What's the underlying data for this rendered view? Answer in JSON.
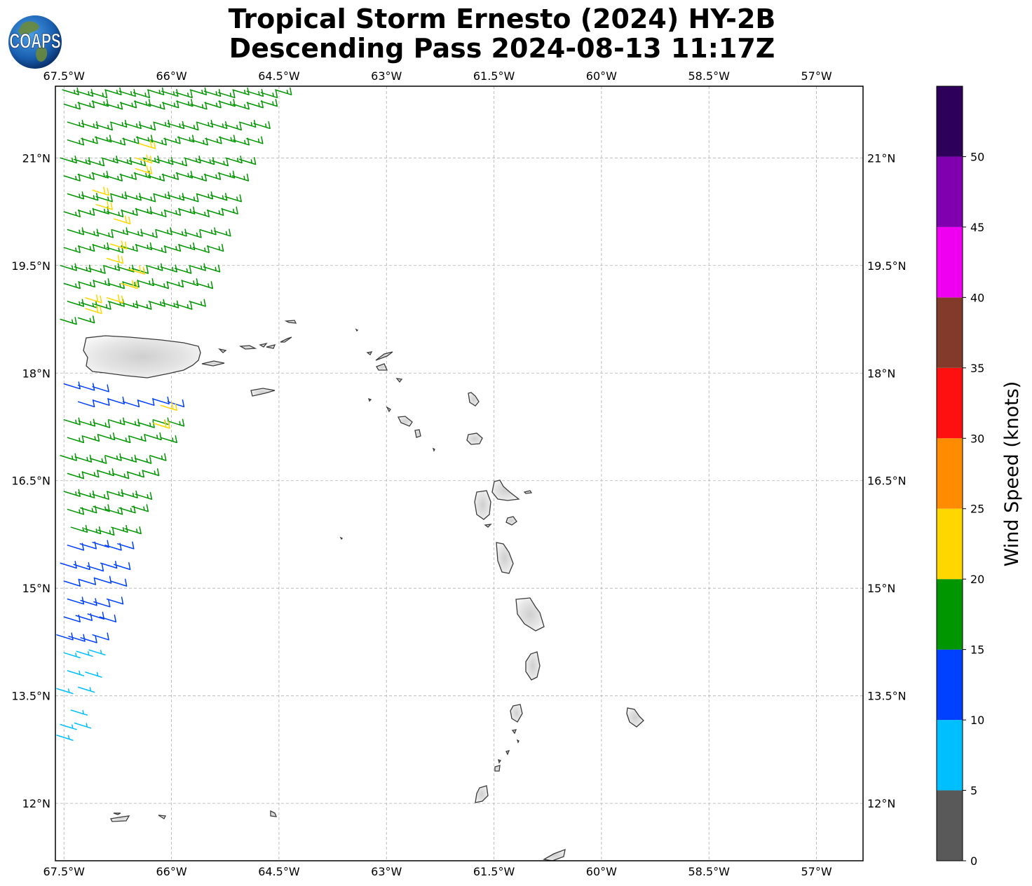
{
  "title": {
    "line1": "Tropical Storm Ernesto (2024) HY-2B",
    "line2": "Descending Pass 2024-08-13 11:17Z"
  },
  "logo": {
    "text": "COAPS",
    "icon": "globe-icon"
  },
  "map": {
    "lon_range": [
      -67.62,
      -56.35
    ],
    "lat_range": [
      11.2,
      22.0
    ],
    "lon_ticks": [
      -67.5,
      -66,
      -64.5,
      -63,
      -61.5,
      -60,
      -58.5,
      -57
    ],
    "lat_ticks": [
      12,
      13.5,
      15,
      16.5,
      18,
      19.5,
      21
    ],
    "lon_tick_labels": [
      "67.5°W",
      "66°W",
      "64.5°W",
      "63°W",
      "61.5°W",
      "60°W",
      "58.5°W",
      "57°W"
    ],
    "lat_tick_labels": [
      "12°N",
      "13.5°N",
      "15°N",
      "16.5°N",
      "18°N",
      "19.5°N",
      "21°N"
    ],
    "grid": true,
    "coastline_color": "#3a3a3a",
    "land_fill": "#e6e6e6"
  },
  "colorbar": {
    "label": "Wind Speed (knots)",
    "bounds": [
      0,
      5,
      10,
      15,
      20,
      25,
      30,
      35,
      40,
      45,
      50,
      55
    ],
    "tick_labels": [
      "0",
      "5",
      "10",
      "15",
      "20",
      "25",
      "30",
      "35",
      "40",
      "45",
      "50"
    ],
    "colors": [
      "#595959",
      "#00bfff",
      "#0040ff",
      "#009600",
      "#ffd700",
      "#ff8c00",
      "#ff1010",
      "#823b2a",
      "#f000f0",
      "#8000b0",
      "#2d005a"
    ]
  },
  "wind_swath": {
    "wind_from": "east-northeast",
    "rows": [
      {
        "lat": 21.95,
        "lon_start": -67.52,
        "lon_end": -64.55,
        "speed": 17
      },
      {
        "lat": 21.75,
        "lon_start": -67.5,
        "lon_end": -64.75,
        "speed": 17
      },
      {
        "lat": 21.5,
        "lon_start": -67.45,
        "lon_end": -64.85,
        "speed": 17
      },
      {
        "lat": 21.25,
        "lon_start": -67.45,
        "lon_end": -64.95,
        "speed": 18
      },
      {
        "lat": 21.0,
        "lon_start": -67.55,
        "lon_end": -65.05,
        "speed": 17
      },
      {
        "lat": 20.75,
        "lon_start": -67.5,
        "lon_end": -65.15,
        "speed": 18
      },
      {
        "lat": 20.5,
        "lon_start": -67.45,
        "lon_end": -65.25,
        "speed": 18
      },
      {
        "lat": 20.25,
        "lon_start": -67.5,
        "lon_end": -65.3,
        "speed": 17
      },
      {
        "lat": 20.0,
        "lon_start": -67.45,
        "lon_end": -65.4,
        "speed": 17
      },
      {
        "lat": 19.75,
        "lon_start": -67.5,
        "lon_end": -65.5,
        "speed": 18
      },
      {
        "lat": 19.5,
        "lon_start": -67.55,
        "lon_end": -65.55,
        "speed": 17
      },
      {
        "lat": 19.25,
        "lon_start": -67.5,
        "lon_end": -65.65,
        "speed": 18
      },
      {
        "lat": 19.0,
        "lon_start": -67.45,
        "lon_end": -65.75,
        "speed": 17
      },
      {
        "lat": 18.75,
        "lon_start": -67.55,
        "lon_end": -67.3,
        "speed": 17
      },
      {
        "lat": 17.85,
        "lon_start": -67.5,
        "lon_end": -67.1,
        "speed": 12
      },
      {
        "lat": 17.6,
        "lon_start": -67.3,
        "lon_end": -66.05,
        "speed": 13
      },
      {
        "lat": 17.35,
        "lon_start": -67.5,
        "lon_end": -66.05,
        "speed": 15
      },
      {
        "lat": 17.1,
        "lon_start": -67.45,
        "lon_end": -66.15,
        "speed": 17
      },
      {
        "lat": 16.85,
        "lon_start": -67.55,
        "lon_end": -66.3,
        "speed": 17
      },
      {
        "lat": 16.6,
        "lon_start": -67.45,
        "lon_end": -66.4,
        "speed": 17
      },
      {
        "lat": 16.35,
        "lon_start": -67.5,
        "lon_end": -66.5,
        "speed": 16
      },
      {
        "lat": 16.1,
        "lon_start": -67.45,
        "lon_end": -66.55,
        "speed": 15
      },
      {
        "lat": 15.85,
        "lon_start": -67.4,
        "lon_end": -66.65,
        "speed": 15
      },
      {
        "lat": 15.6,
        "lon_start": -67.45,
        "lon_end": -66.75,
        "speed": 14
      },
      {
        "lat": 15.35,
        "lon_start": -67.55,
        "lon_end": -66.8,
        "speed": 13
      },
      {
        "lat": 15.1,
        "lon_start": -67.5,
        "lon_end": -66.85,
        "speed": 13
      },
      {
        "lat": 14.85,
        "lon_start": -67.45,
        "lon_end": -66.9,
        "speed": 12
      },
      {
        "lat": 14.6,
        "lon_start": -67.5,
        "lon_end": -67.0,
        "speed": 12
      },
      {
        "lat": 14.35,
        "lon_start": -67.6,
        "lon_end": -67.1,
        "speed": 10
      },
      {
        "lat": 14.1,
        "lon_start": -67.5,
        "lon_end": -67.15,
        "speed": 9
      },
      {
        "lat": 13.85,
        "lon_start": -67.45,
        "lon_end": -67.2,
        "speed": 8
      },
      {
        "lat": 13.6,
        "lon_start": -67.6,
        "lon_end": -67.3,
        "speed": 8
      },
      {
        "lat": 13.3,
        "lon_start": -67.4,
        "lon_end": -67.4,
        "speed": 7
      },
      {
        "lat": 13.1,
        "lon_start": -67.55,
        "lon_end": -67.35,
        "speed": 7
      },
      {
        "lat": 12.95,
        "lon_start": -67.6,
        "lon_end": -67.5,
        "speed": 6
      }
    ],
    "strong_patches": [
      {
        "lat": 21.2,
        "lon": -66.45,
        "speed": 22
      },
      {
        "lat": 21.0,
        "lon": -66.5,
        "speed": 21
      },
      {
        "lat": 20.85,
        "lon": -66.5,
        "speed": 22
      },
      {
        "lat": 20.55,
        "lon": -67.1,
        "speed": 21
      },
      {
        "lat": 20.35,
        "lon": -67.05,
        "speed": 22
      },
      {
        "lat": 20.15,
        "lon": -66.8,
        "speed": 21
      },
      {
        "lat": 19.8,
        "lon": -66.85,
        "speed": 22
      },
      {
        "lat": 19.6,
        "lon": -66.9,
        "speed": 21
      },
      {
        "lat": 19.45,
        "lon": -66.6,
        "speed": 22
      },
      {
        "lat": 19.25,
        "lon": -66.7,
        "speed": 21
      },
      {
        "lat": 19.05,
        "lon": -67.2,
        "speed": 22
      },
      {
        "lat": 19.05,
        "lon": -66.9,
        "speed": 21
      },
      {
        "lat": 18.9,
        "lon": -67.2,
        "speed": 22
      },
      {
        "lat": 17.55,
        "lon": -66.15,
        "speed": 22
      },
      {
        "lat": 17.3,
        "lon": -66.25,
        "speed": 21
      }
    ]
  }
}
